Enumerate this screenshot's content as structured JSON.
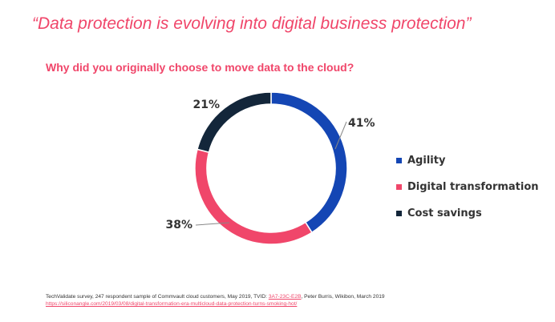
{
  "headline": "“Data protection is evolving into digital business protection”",
  "colors": {
    "accent": "#f0466a",
    "agility": "#1446b4",
    "digital": "#f0466a",
    "cost": "#13263a"
  },
  "chart_data": {
    "type": "pie",
    "donut": true,
    "title": "Why did you originally choose to move data to the cloud?",
    "categories": [
      "Agility",
      "Digital transformation",
      "Cost savings"
    ],
    "values": [
      41,
      38,
      21
    ],
    "value_labels": [
      "41%",
      "38%",
      "21%"
    ],
    "colors": [
      "#1446b4",
      "#f0466a",
      "#13263a"
    ],
    "legend_position": "right"
  },
  "footnote": {
    "line1_text": "TechValidate survey, 247 respondent sample of Commvault cloud customers, May 2019, TVID: ",
    "line1_link": "3A7-23C-E2B",
    "line1_suffix": ", Peter Burris, Wikibon, March 2019",
    "line2_link": "https://siliconangle.com/2019/03/08/digital-transformation-era-multicloud-data-protection-turns-smoking-hot/"
  }
}
